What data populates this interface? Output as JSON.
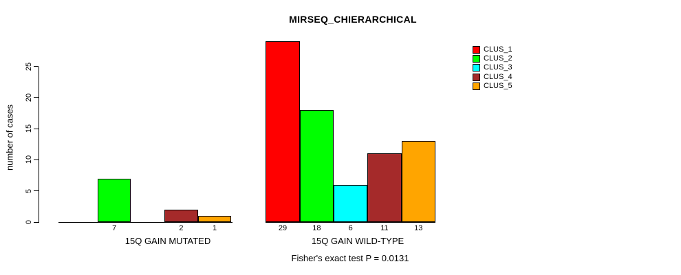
{
  "chart": {
    "title": "MIRSEQ_CHIERARCHICAL",
    "y_axis_label": "number of cases",
    "footnote": "Fisher's exact test P = 0.0131"
  },
  "chart_data": {
    "type": "bar",
    "title": "MIRSEQ_CHIERARCHICAL",
    "xlabel": "",
    "ylabel": "number of cases",
    "ylim": [
      0,
      29
    ],
    "yticks": [
      0,
      5,
      10,
      15,
      20,
      25
    ],
    "grid": false,
    "legend_position": "top-right",
    "categories": [
      "15Q GAIN MUTATED",
      "15Q GAIN WILD-TYPE"
    ],
    "series": [
      {
        "name": "CLUS_1",
        "color": "#FF0000",
        "values": [
          0,
          29
        ]
      },
      {
        "name": "CLUS_2",
        "color": "#00FF00",
        "values": [
          7,
          18
        ]
      },
      {
        "name": "CLUS_3",
        "color": "#00FFFF",
        "values": [
          0,
          6
        ]
      },
      {
        "name": "CLUS_4",
        "color": "#A52A2A",
        "values": [
          2,
          11
        ]
      },
      {
        "name": "CLUS_5",
        "color": "#FFA500",
        "values": [
          1,
          13
        ]
      }
    ],
    "bar_value_labels": [
      [
        "",
        "7",
        "",
        "2",
        "1"
      ],
      [
        "29",
        "18",
        "6",
        "11",
        "13"
      ]
    ],
    "annotation": "Fisher's exact test P = 0.0131"
  }
}
